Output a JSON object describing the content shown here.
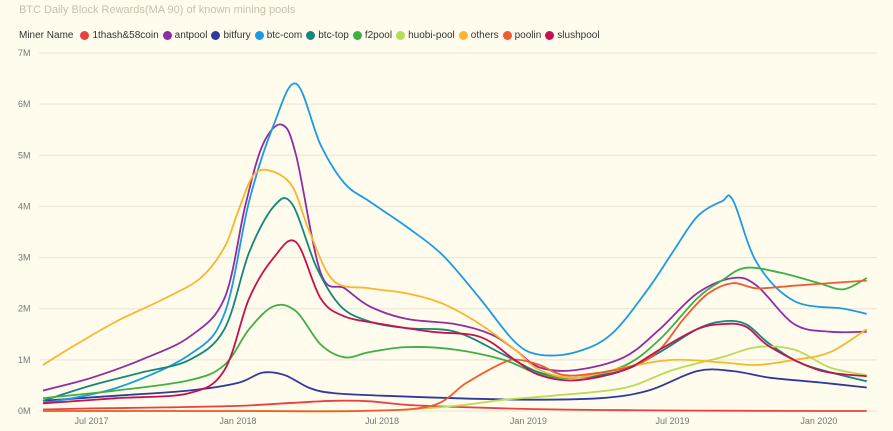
{
  "chart_data": {
    "type": "line",
    "title": "BTC Daily Block Rewards(MA 90) of known mining pools",
    "legend_title": "Miner Name",
    "legend_position": "top-left",
    "grid": true,
    "xlabel": "",
    "ylabel": "",
    "ylim": [
      0,
      7000000
    ],
    "yticks": [
      {
        "value": 0,
        "label": "0M"
      },
      {
        "value": 1000000,
        "label": "1M"
      },
      {
        "value": 2000000,
        "label": "2M"
      },
      {
        "value": 3000000,
        "label": "3M"
      },
      {
        "value": 4000000,
        "label": "4M"
      },
      {
        "value": 5000000,
        "label": "5M"
      },
      {
        "value": 6000000,
        "label": "6M"
      },
      {
        "value": 7000000,
        "label": "7M"
      }
    ],
    "xlim": [
      "2017-04-26",
      "2020-03-14"
    ],
    "xticks": [
      {
        "value": "2017-07-01",
        "label": "Jul 2017"
      },
      {
        "value": "2018-01-01",
        "label": "Jan 2018"
      },
      {
        "value": "2018-07-01",
        "label": "Jul 2018"
      },
      {
        "value": "2019-01-01",
        "label": "Jan 2019"
      },
      {
        "value": "2019-07-01",
        "label": "Jul 2019"
      },
      {
        "value": "2020-01-01",
        "label": "Jan 2020"
      }
    ],
    "series": [
      {
        "name": "1thash&58coin",
        "color": "#e8413f",
        "points": [
          [
            "2017-05-01",
            30000
          ],
          [
            "2017-07-01",
            50000
          ],
          [
            "2017-10-01",
            70000
          ],
          [
            "2018-01-01",
            100000
          ],
          [
            "2018-03-01",
            150000
          ],
          [
            "2018-05-01",
            200000
          ],
          [
            "2018-06-15",
            190000
          ],
          [
            "2018-08-01",
            120000
          ],
          [
            "2018-10-01",
            80000
          ],
          [
            "2019-01-01",
            40000
          ],
          [
            "2019-04-01",
            20000
          ],
          [
            "2019-07-01",
            10000
          ],
          [
            "2019-09-01",
            5000
          ],
          [
            "2020-01-01",
            0
          ],
          [
            "2020-03-01",
            0
          ]
        ]
      },
      {
        "name": "antpool",
        "color": "#8e2ea6",
        "points": [
          [
            "2017-05-01",
            400000
          ],
          [
            "2017-07-01",
            650000
          ],
          [
            "2017-09-01",
            1000000
          ],
          [
            "2017-11-01",
            1450000
          ],
          [
            "2017-12-15",
            2200000
          ],
          [
            "2018-01-10",
            4000000
          ],
          [
            "2018-02-01",
            5200000
          ],
          [
            "2018-02-25",
            5600000
          ],
          [
            "2018-03-15",
            5000000
          ],
          [
            "2018-04-15",
            2700000
          ],
          [
            "2018-05-15",
            2400000
          ],
          [
            "2018-06-15",
            2050000
          ],
          [
            "2018-08-01",
            1800000
          ],
          [
            "2018-10-01",
            1700000
          ],
          [
            "2018-11-15",
            1500000
          ],
          [
            "2018-12-15",
            1200000
          ],
          [
            "2019-01-15",
            850000
          ],
          [
            "2019-03-01",
            800000
          ],
          [
            "2019-05-01",
            1050000
          ],
          [
            "2019-06-15",
            1600000
          ],
          [
            "2019-08-01",
            2300000
          ],
          [
            "2019-09-15",
            2600000
          ],
          [
            "2019-10-15",
            2450000
          ],
          [
            "2019-12-01",
            1700000
          ],
          [
            "2020-01-15",
            1550000
          ],
          [
            "2020-03-01",
            1550000
          ]
        ]
      },
      {
        "name": "bitfury",
        "color": "#2f3a9e",
        "points": [
          [
            "2017-05-01",
            200000
          ],
          [
            "2017-08-01",
            300000
          ],
          [
            "2017-11-01",
            400000
          ],
          [
            "2018-01-01",
            550000
          ],
          [
            "2018-02-01",
            750000
          ],
          [
            "2018-03-01",
            700000
          ],
          [
            "2018-04-01",
            450000
          ],
          [
            "2018-05-01",
            350000
          ],
          [
            "2018-07-01",
            300000
          ],
          [
            "2018-10-01",
            250000
          ],
          [
            "2019-01-01",
            220000
          ],
          [
            "2019-04-01",
            250000
          ],
          [
            "2019-06-01",
            400000
          ],
          [
            "2019-08-01",
            780000
          ],
          [
            "2019-09-15",
            780000
          ],
          [
            "2019-11-01",
            650000
          ],
          [
            "2020-01-01",
            560000
          ],
          [
            "2020-03-01",
            460000
          ]
        ]
      },
      {
        "name": "btc-com",
        "color": "#1c9be5",
        "points": [
          [
            "2017-05-01",
            150000
          ],
          [
            "2017-08-01",
            450000
          ],
          [
            "2017-11-01",
            1100000
          ],
          [
            "2017-12-15",
            1900000
          ],
          [
            "2018-01-15",
            4100000
          ],
          [
            "2018-02-15",
            5600000
          ],
          [
            "2018-03-15",
            6400000
          ],
          [
            "2018-04-15",
            5200000
          ],
          [
            "2018-05-15",
            4450000
          ],
          [
            "2018-06-15",
            4100000
          ],
          [
            "2018-08-01",
            3600000
          ],
          [
            "2018-09-15",
            3050000
          ],
          [
            "2018-11-01",
            2200000
          ],
          [
            "2018-12-15",
            1350000
          ],
          [
            "2019-01-15",
            1100000
          ],
          [
            "2019-03-01",
            1150000
          ],
          [
            "2019-04-15",
            1500000
          ],
          [
            "2019-06-01",
            2400000
          ],
          [
            "2019-07-01",
            3100000
          ],
          [
            "2019-08-01",
            3800000
          ],
          [
            "2019-09-01",
            4100000
          ],
          [
            "2019-09-15",
            4120000
          ],
          [
            "2019-10-15",
            2900000
          ],
          [
            "2019-12-01",
            2150000
          ],
          [
            "2020-02-01",
            2000000
          ],
          [
            "2020-03-01",
            1900000
          ]
        ]
      },
      {
        "name": "btc-top",
        "color": "#13877c",
        "points": [
          [
            "2017-05-01",
            200000
          ],
          [
            "2017-07-01",
            500000
          ],
          [
            "2017-09-01",
            750000
          ],
          [
            "2017-11-01",
            1000000
          ],
          [
            "2017-12-15",
            1600000
          ],
          [
            "2018-01-15",
            3100000
          ],
          [
            "2018-02-15",
            4000000
          ],
          [
            "2018-03-10",
            4050000
          ],
          [
            "2018-04-10",
            2800000
          ],
          [
            "2018-05-10",
            2050000
          ],
          [
            "2018-06-15",
            1750000
          ],
          [
            "2018-08-01",
            1620000
          ],
          [
            "2018-10-01",
            1550000
          ],
          [
            "2018-12-01",
            1100000
          ],
          [
            "2019-01-15",
            750000
          ],
          [
            "2019-03-01",
            650000
          ],
          [
            "2019-05-01",
            800000
          ],
          [
            "2019-06-15",
            1150000
          ],
          [
            "2019-08-01",
            1600000
          ],
          [
            "2019-09-01",
            1750000
          ],
          [
            "2019-10-01",
            1700000
          ],
          [
            "2019-11-01",
            1300000
          ],
          [
            "2019-12-15",
            900000
          ],
          [
            "2020-03-01",
            580000
          ]
        ]
      },
      {
        "name": "f2pool",
        "color": "#3faf46",
        "points": [
          [
            "2017-05-01",
            250000
          ],
          [
            "2017-08-01",
            400000
          ],
          [
            "2017-11-01",
            600000
          ],
          [
            "2017-12-15",
            900000
          ],
          [
            "2018-01-15",
            1600000
          ],
          [
            "2018-02-15",
            2050000
          ],
          [
            "2018-03-15",
            1950000
          ],
          [
            "2018-04-15",
            1300000
          ],
          [
            "2018-05-15",
            1050000
          ],
          [
            "2018-06-15",
            1150000
          ],
          [
            "2018-08-01",
            1250000
          ],
          [
            "2018-10-01",
            1200000
          ],
          [
            "2018-12-01",
            1000000
          ],
          [
            "2019-01-15",
            720000
          ],
          [
            "2019-03-01",
            650000
          ],
          [
            "2019-05-01",
            880000
          ],
          [
            "2019-06-15",
            1400000
          ],
          [
            "2019-08-01",
            2200000
          ],
          [
            "2019-09-01",
            2550000
          ],
          [
            "2019-10-01",
            2800000
          ],
          [
            "2019-11-15",
            2700000
          ],
          [
            "2020-01-01",
            2500000
          ],
          [
            "2020-02-01",
            2380000
          ],
          [
            "2020-03-01",
            2600000
          ]
        ]
      },
      {
        "name": "huobi-pool",
        "color": "#b9db56",
        "points": [
          [
            "2017-05-01",
            0
          ],
          [
            "2017-10-01",
            0
          ],
          [
            "2018-01-01",
            0
          ],
          [
            "2018-07-01",
            10000
          ],
          [
            "2018-10-01",
            100000
          ],
          [
            "2018-12-01",
            220000
          ],
          [
            "2019-02-01",
            300000
          ],
          [
            "2019-05-01",
            450000
          ],
          [
            "2019-07-01",
            800000
          ],
          [
            "2019-09-01",
            1050000
          ],
          [
            "2019-10-15",
            1250000
          ],
          [
            "2019-12-01",
            1200000
          ],
          [
            "2020-01-15",
            850000
          ],
          [
            "2020-03-01",
            700000
          ]
        ]
      },
      {
        "name": "others",
        "color": "#f8b72c",
        "points": [
          [
            "2017-05-01",
            900000
          ],
          [
            "2017-06-01",
            1200000
          ],
          [
            "2017-08-01",
            1750000
          ],
          [
            "2017-10-01",
            2200000
          ],
          [
            "2017-11-15",
            2600000
          ],
          [
            "2017-12-15",
            3200000
          ],
          [
            "2018-01-01",
            3900000
          ],
          [
            "2018-01-20",
            4600000
          ],
          [
            "2018-02-10",
            4700000
          ],
          [
            "2018-03-10",
            4400000
          ],
          [
            "2018-04-01",
            3500000
          ],
          [
            "2018-05-01",
            2550000
          ],
          [
            "2018-06-15",
            2400000
          ],
          [
            "2018-08-01",
            2300000
          ],
          [
            "2018-09-15",
            2100000
          ],
          [
            "2018-11-01",
            1700000
          ],
          [
            "2018-12-15",
            1200000
          ],
          [
            "2019-01-15",
            800000
          ],
          [
            "2019-03-01",
            650000
          ],
          [
            "2019-05-01",
            850000
          ],
          [
            "2019-07-01",
            1000000
          ],
          [
            "2019-09-01",
            950000
          ],
          [
            "2019-10-15",
            900000
          ],
          [
            "2019-12-01",
            1000000
          ],
          [
            "2020-01-15",
            1150000
          ],
          [
            "2020-03-01",
            1600000
          ]
        ]
      },
      {
        "name": "poolin",
        "color": "#f25a30",
        "points": [
          [
            "2017-05-01",
            0
          ],
          [
            "2018-01-01",
            0
          ],
          [
            "2018-06-01",
            0
          ],
          [
            "2018-09-01",
            100000
          ],
          [
            "2018-10-15",
            550000
          ],
          [
            "2018-12-01",
            950000
          ],
          [
            "2018-12-20",
            1000000
          ],
          [
            "2019-01-15",
            900000
          ],
          [
            "2019-02-15",
            700000
          ],
          [
            "2019-04-01",
            750000
          ],
          [
            "2019-05-15",
            900000
          ],
          [
            "2019-06-15",
            1200000
          ],
          [
            "2019-07-15",
            1800000
          ],
          [
            "2019-08-15",
            2300000
          ],
          [
            "2019-09-15",
            2500000
          ],
          [
            "2019-10-15",
            2400000
          ],
          [
            "2019-12-01",
            2450000
          ],
          [
            "2020-01-15",
            2500000
          ],
          [
            "2020-03-01",
            2550000
          ]
        ]
      },
      {
        "name": "slushpool",
        "color": "#c4124f",
        "points": [
          [
            "2017-05-01",
            150000
          ],
          [
            "2017-08-01",
            250000
          ],
          [
            "2017-11-01",
            350000
          ],
          [
            "2017-12-15",
            800000
          ],
          [
            "2018-01-15",
            2200000
          ],
          [
            "2018-02-15",
            3000000
          ],
          [
            "2018-03-15",
            3300000
          ],
          [
            "2018-04-15",
            2200000
          ],
          [
            "2018-05-15",
            1850000
          ],
          [
            "2018-07-01",
            1700000
          ],
          [
            "2018-09-01",
            1550000
          ],
          [
            "2018-11-01",
            1450000
          ],
          [
            "2018-12-15",
            1000000
          ],
          [
            "2019-01-15",
            700000
          ],
          [
            "2019-03-01",
            600000
          ],
          [
            "2019-05-01",
            800000
          ],
          [
            "2019-06-15",
            1200000
          ],
          [
            "2019-08-01",
            1600000
          ],
          [
            "2019-09-01",
            1700000
          ],
          [
            "2019-10-01",
            1650000
          ],
          [
            "2019-11-01",
            1250000
          ],
          [
            "2020-01-01",
            800000
          ],
          [
            "2020-03-01",
            680000
          ]
        ]
      }
    ]
  }
}
